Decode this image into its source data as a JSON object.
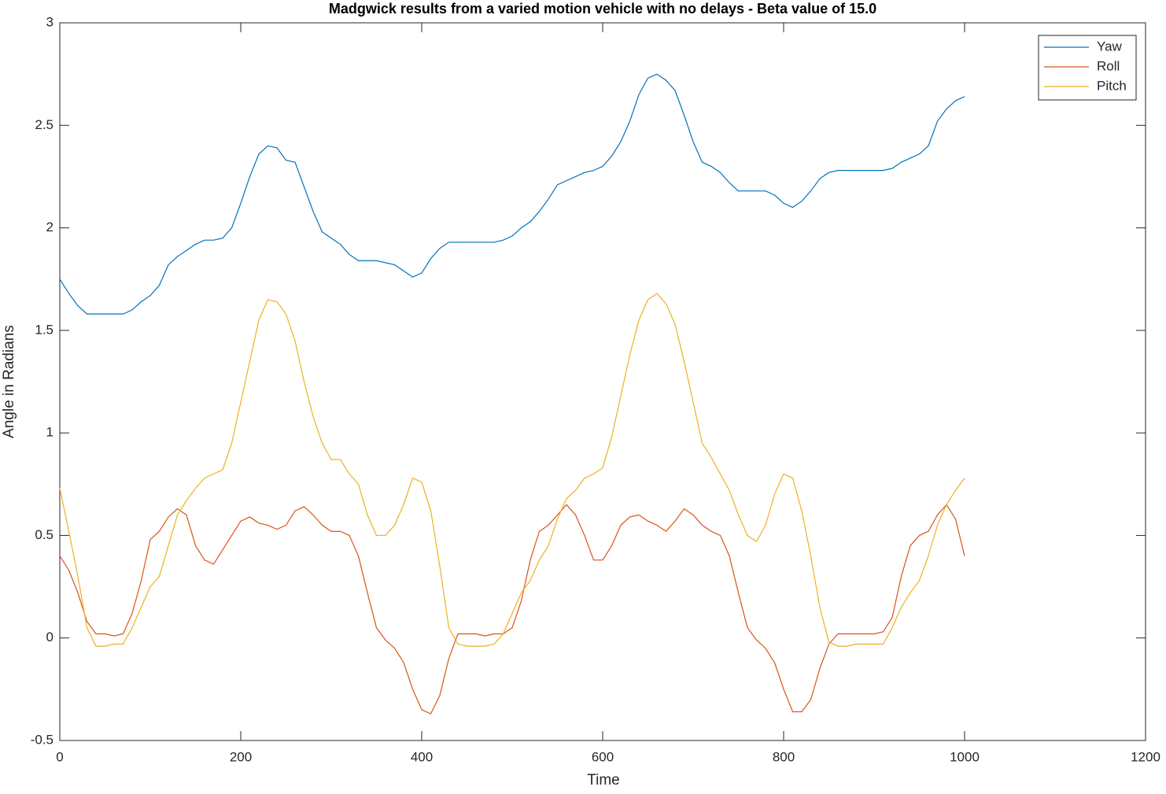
{
  "chart_data": {
    "type": "line",
    "title": "Madgwick results from a varied motion vehicle with no delays - Beta value of 15.0",
    "x_label": "Time",
    "y_label": "Angle in Radians",
    "x": [
      0,
      10,
      20,
      30,
      40,
      50,
      60,
      70,
      80,
      90,
      100,
      110,
      120,
      130,
      140,
      150,
      160,
      170,
      180,
      190,
      200,
      210,
      220,
      230,
      240,
      250,
      260,
      270,
      280,
      290,
      300,
      310,
      320,
      330,
      340,
      350,
      360,
      370,
      380,
      390,
      400,
      410,
      420,
      430,
      440,
      450,
      460,
      470,
      480,
      490,
      500,
      510,
      520,
      530,
      540,
      550,
      560,
      570,
      580,
      590,
      600,
      610,
      620,
      630,
      640,
      650,
      660,
      670,
      680,
      690,
      700,
      710,
      720,
      730,
      740,
      750,
      760,
      770,
      780,
      790,
      800,
      810,
      820,
      830,
      840,
      850,
      860,
      870,
      880,
      890,
      900,
      910,
      920,
      930,
      940,
      950,
      960,
      970,
      980,
      990,
      1000
    ],
    "series": [
      {
        "name": "Yaw",
        "color": "#0072bd",
        "values": [
          1.75,
          1.68,
          1.62,
          1.58,
          1.58,
          1.58,
          1.58,
          1.58,
          1.6,
          1.64,
          1.67,
          1.72,
          1.82,
          1.86,
          1.89,
          1.92,
          1.94,
          1.94,
          1.95,
          2.0,
          2.12,
          2.25,
          2.36,
          2.4,
          2.39,
          2.33,
          2.32,
          2.2,
          2.08,
          1.98,
          1.95,
          1.92,
          1.87,
          1.84,
          1.84,
          1.84,
          1.83,
          1.82,
          1.79,
          1.76,
          1.78,
          1.85,
          1.9,
          1.93,
          1.93,
          1.93,
          1.93,
          1.93,
          1.93,
          1.94,
          1.96,
          2.0,
          2.03,
          2.08,
          2.14,
          2.21,
          2.23,
          2.25,
          2.27,
          2.28,
          2.3,
          2.35,
          2.42,
          2.52,
          2.65,
          2.73,
          2.75,
          2.72,
          2.67,
          2.55,
          2.42,
          2.32,
          2.3,
          2.27,
          2.22,
          2.18,
          2.18,
          2.18,
          2.18,
          2.16,
          2.12,
          2.1,
          2.13,
          2.18,
          2.24,
          2.27,
          2.28,
          2.28,
          2.28,
          2.28,
          2.28,
          2.28,
          2.29,
          2.32,
          2.34,
          2.36,
          2.4,
          2.52,
          2.58,
          2.62,
          2.64
        ]
      },
      {
        "name": "Roll",
        "color": "#d95319",
        "values": [
          0.4,
          0.33,
          0.22,
          0.08,
          0.02,
          0.02,
          0.01,
          0.02,
          0.12,
          0.28,
          0.48,
          0.52,
          0.59,
          0.63,
          0.6,
          0.45,
          0.38,
          0.36,
          0.43,
          0.5,
          0.57,
          0.59,
          0.56,
          0.55,
          0.53,
          0.55,
          0.62,
          0.64,
          0.6,
          0.55,
          0.52,
          0.52,
          0.5,
          0.4,
          0.22,
          0.05,
          -0.01,
          -0.05,
          -0.12,
          -0.25,
          -0.35,
          -0.37,
          -0.28,
          -0.1,
          0.02,
          0.02,
          0.02,
          0.01,
          0.02,
          0.02,
          0.05,
          0.18,
          0.38,
          0.52,
          0.55,
          0.6,
          0.65,
          0.6,
          0.5,
          0.38,
          0.38,
          0.45,
          0.55,
          0.59,
          0.6,
          0.57,
          0.55,
          0.52,
          0.57,
          0.63,
          0.6,
          0.55,
          0.52,
          0.5,
          0.4,
          0.22,
          0.05,
          -0.01,
          -0.05,
          -0.12,
          -0.25,
          -0.36,
          -0.36,
          -0.3,
          -0.15,
          -0.03,
          0.02,
          0.02,
          0.02,
          0.02,
          0.02,
          0.03,
          0.1,
          0.3,
          0.45,
          0.5,
          0.52,
          0.6,
          0.65,
          0.58,
          0.4
        ]
      },
      {
        "name": "Pitch",
        "color": "#edb120",
        "values": [
          0.73,
          0.52,
          0.3,
          0.05,
          -0.04,
          -0.04,
          -0.03,
          -0.03,
          0.05,
          0.15,
          0.25,
          0.3,
          0.45,
          0.6,
          0.67,
          0.73,
          0.78,
          0.8,
          0.82,
          0.95,
          1.15,
          1.35,
          1.55,
          1.65,
          1.64,
          1.58,
          1.45,
          1.25,
          1.08,
          0.95,
          0.87,
          0.87,
          0.8,
          0.75,
          0.6,
          0.5,
          0.5,
          0.55,
          0.65,
          0.78,
          0.76,
          0.62,
          0.35,
          0.05,
          -0.03,
          -0.04,
          -0.04,
          -0.04,
          -0.03,
          0.02,
          0.12,
          0.22,
          0.28,
          0.38,
          0.45,
          0.58,
          0.68,
          0.72,
          0.78,
          0.8,
          0.83,
          0.98,
          1.18,
          1.38,
          1.55,
          1.65,
          1.68,
          1.63,
          1.53,
          1.35,
          1.15,
          0.95,
          0.88,
          0.8,
          0.72,
          0.6,
          0.5,
          0.47,
          0.55,
          0.7,
          0.8,
          0.78,
          0.62,
          0.4,
          0.15,
          -0.02,
          -0.04,
          -0.04,
          -0.03,
          -0.03,
          -0.03,
          -0.03,
          0.05,
          0.15,
          0.22,
          0.28,
          0.4,
          0.55,
          0.65,
          0.72,
          0.78
        ]
      }
    ],
    "xlim": [
      0,
      1200
    ],
    "xticks": [
      0,
      200,
      400,
      600,
      800,
      1000,
      1200
    ],
    "ylim": [
      -0.5,
      3
    ],
    "yticks": [
      -0.5,
      0,
      0.5,
      1,
      1.5,
      2,
      2.5,
      3
    ],
    "legend": "upper right"
  }
}
